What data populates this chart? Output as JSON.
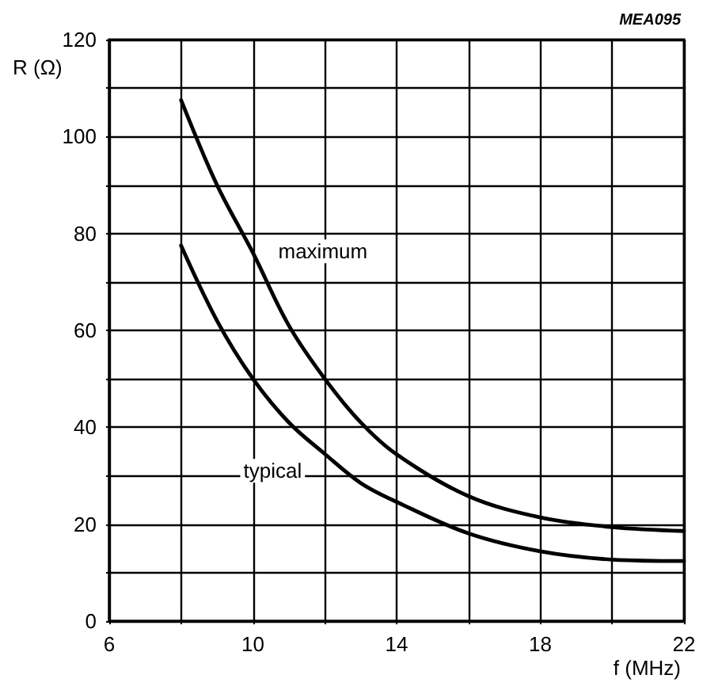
{
  "chart_data": {
    "type": "line",
    "xlabel": "f (MHz)",
    "ylabel": "R (Ω)",
    "annotations": [
      "MEA095"
    ],
    "series": [
      {
        "name": "maximum",
        "color": "#000000",
        "x": [
          8,
          9,
          10,
          11,
          12,
          13,
          14,
          16,
          18,
          20,
          22
        ],
        "values": [
          107.5,
          90,
          76,
          61,
          50,
          41,
          34.4,
          25.8,
          21.4,
          19.4,
          18.6
        ]
      },
      {
        "name": "typical",
        "color": "#000000",
        "x": [
          8,
          9,
          10,
          11,
          12,
          13,
          14,
          16,
          18,
          20,
          22
        ],
        "values": [
          77.5,
          62,
          50,
          41,
          34.5,
          28.5,
          24.6,
          18.1,
          14.4,
          12.7,
          12.4
        ]
      }
    ],
    "xlim": [
      6,
      22
    ],
    "xticks": [
      6,
      {
        "value": 8,
        "label": null
      },
      10,
      {
        "value": 12,
        "label": null
      },
      14,
      {
        "value": 16,
        "label": null
      },
      18,
      {
        "value": 20,
        "label": null
      },
      22
    ],
    "ylim": [
      0,
      120
    ],
    "yticks": [
      0,
      {
        "value": 10,
        "label": null
      },
      20,
      {
        "value": 30,
        "label": null
      },
      40,
      {
        "value": 50,
        "label": null
      },
      60,
      {
        "value": 70,
        "label": null
      },
      80,
      {
        "value": 90,
        "label": null
      },
      100,
      {
        "value": 110,
        "label": null
      },
      120
    ],
    "grid": true,
    "marker": "none",
    "line_style": "solid"
  }
}
